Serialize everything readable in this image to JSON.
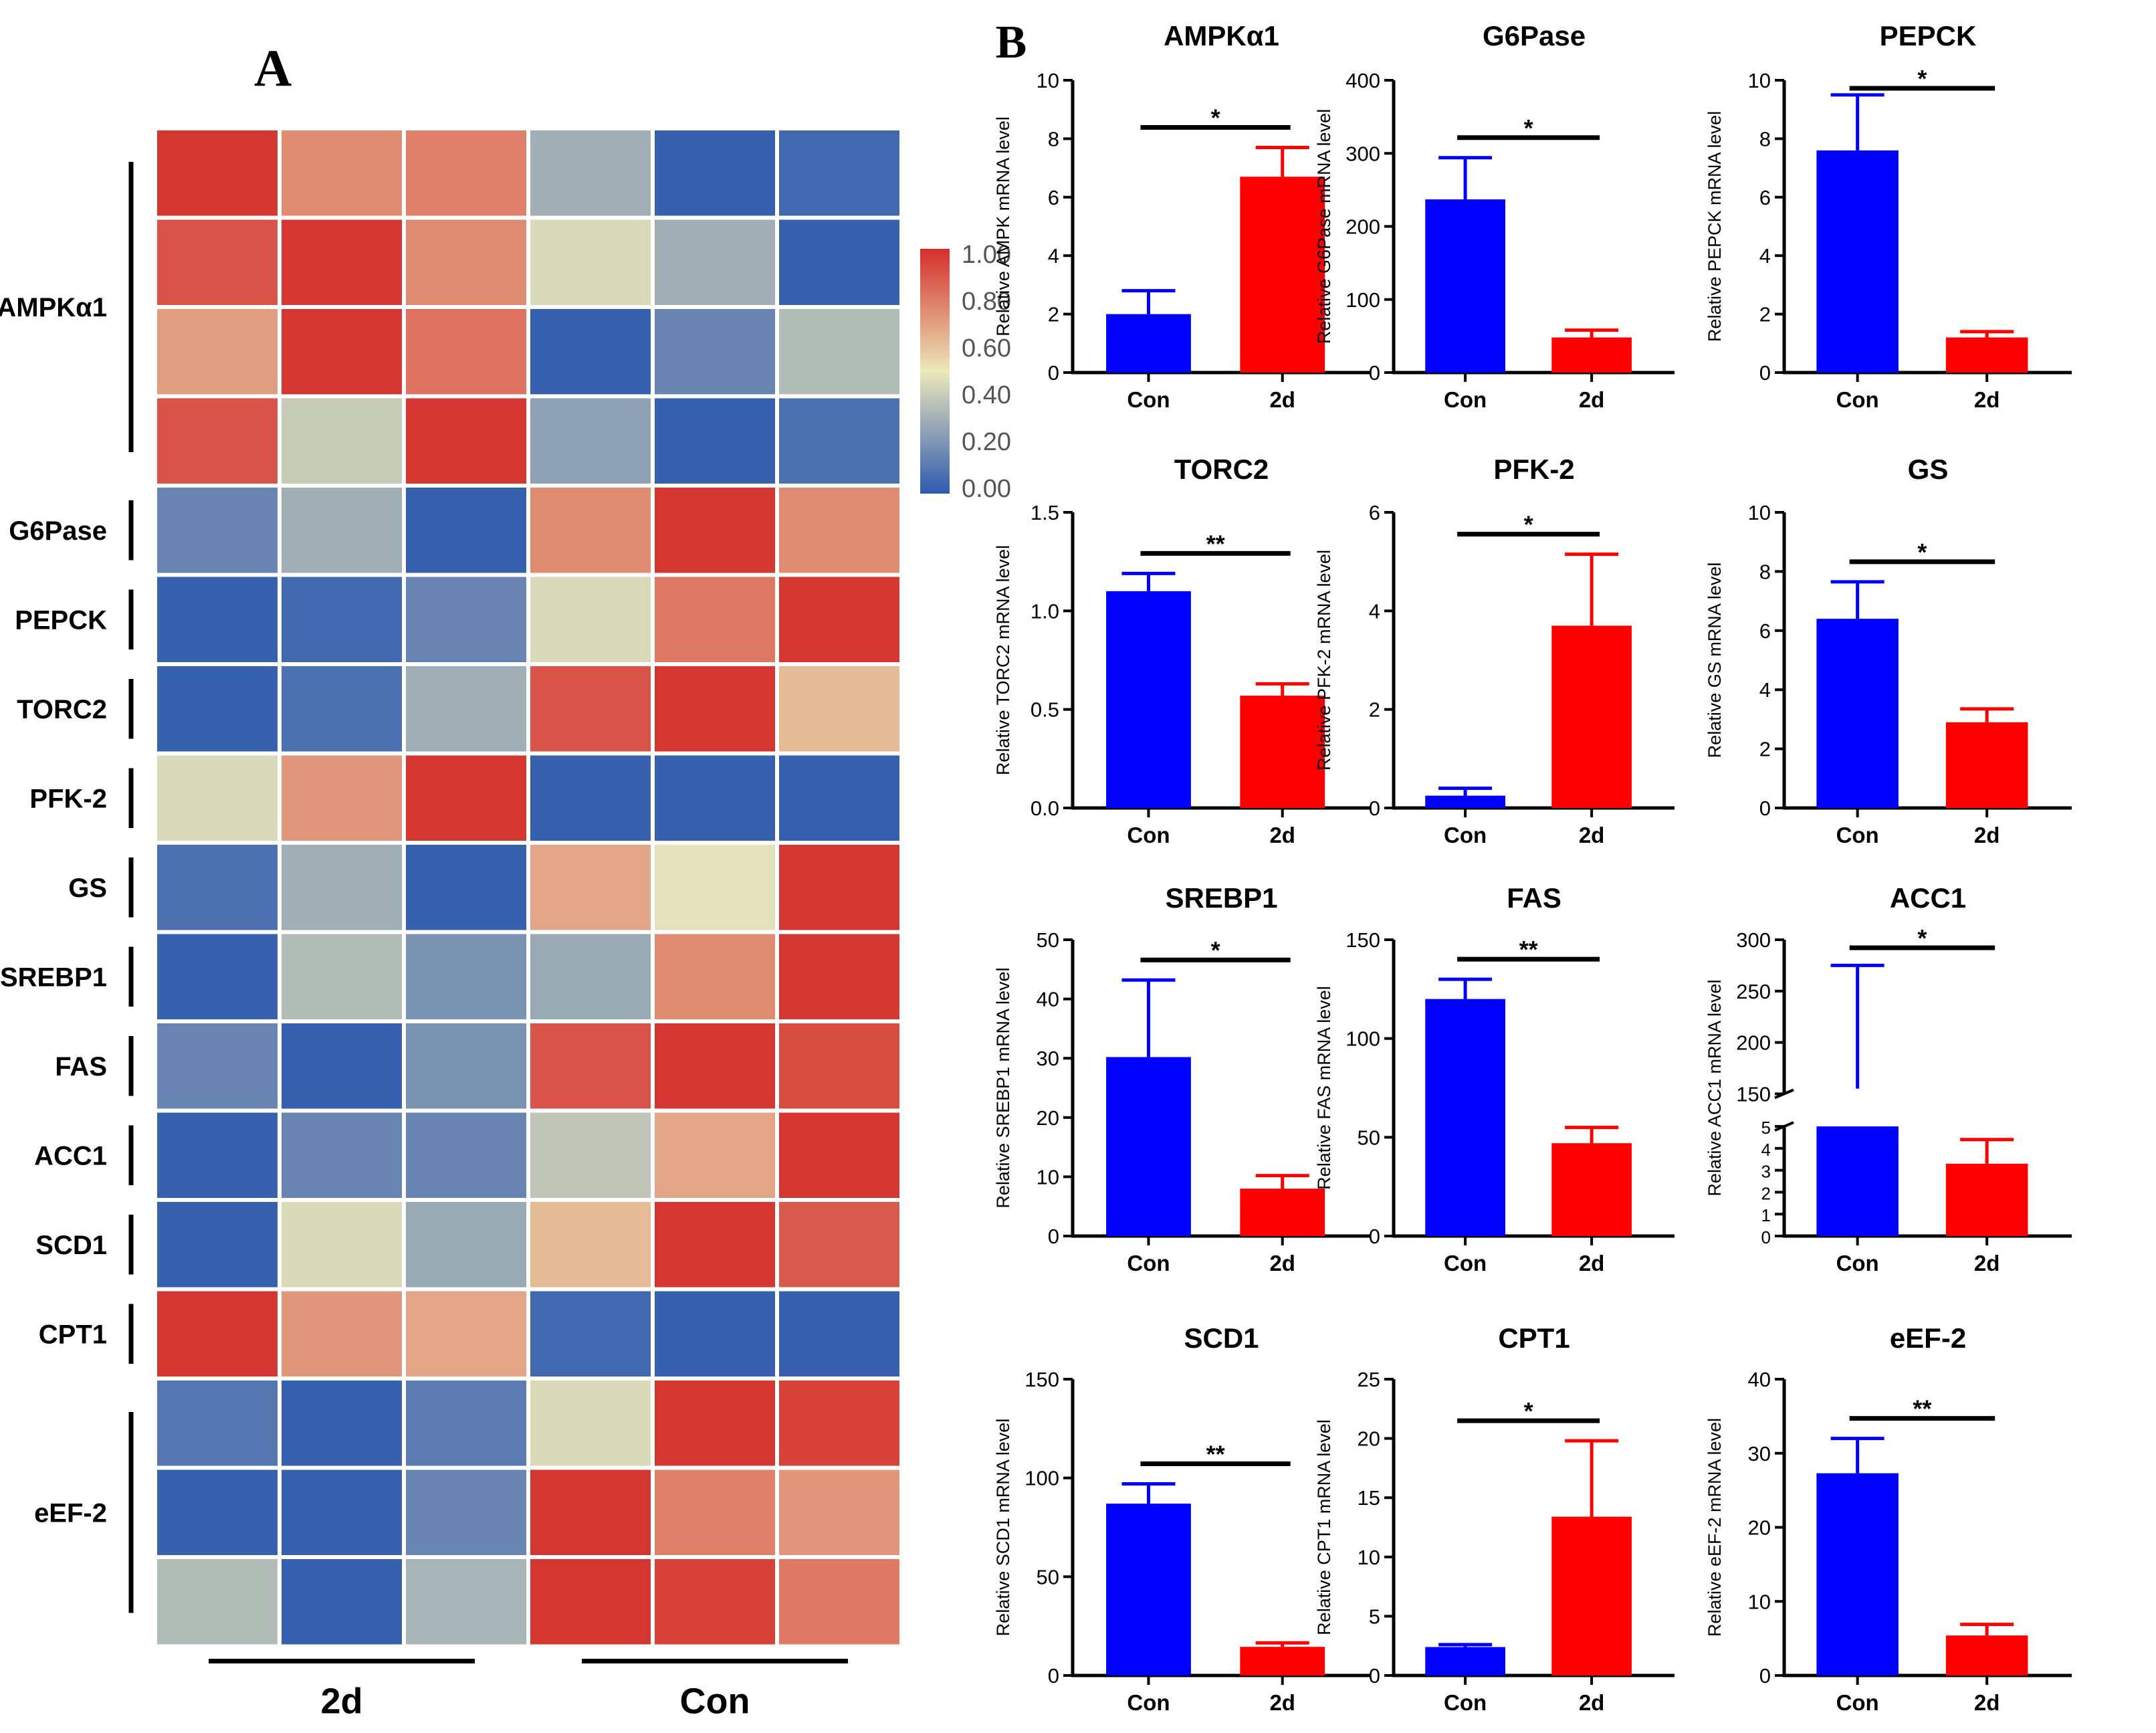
{
  "panels": {
    "a_label": "A",
    "b_label": "B"
  },
  "colors": {
    "con": "#0000ff",
    "treated": "#ff0000",
    "heat_low": "#2f5aae",
    "heat_mid": "#ece8bb",
    "heat_high": "#d32f2b"
  },
  "chart_data": [
    {
      "type": "heatmap",
      "title": "",
      "row_labels": [
        "AMPKα1",
        "G6Pase",
        "PEPCK",
        "TORC2",
        "PFK-2",
        "GS",
        "SREBP1",
        "FAS",
        "ACC1",
        "SCD1",
        "CPT1",
        "eEF-2"
      ],
      "row_counts": [
        4,
        1,
        1,
        1,
        1,
        1,
        1,
        1,
        1,
        1,
        1,
        3
      ],
      "column_groups": [
        "2d",
        "Con"
      ],
      "columns_per_group": 3,
      "values": [
        [
          0.98,
          0.75,
          0.78,
          0.3,
          0.02,
          0.05
        ],
        [
          0.9,
          0.98,
          0.75,
          0.45,
          0.3,
          0.02
        ],
        [
          0.7,
          0.98,
          0.82,
          0.02,
          0.15,
          0.35
        ],
        [
          0.9,
          0.4,
          0.98,
          0.25,
          0.02,
          0.08
        ],
        [
          0.15,
          0.3,
          0.02,
          0.75,
          0.98,
          0.75
        ],
        [
          0.02,
          0.05,
          0.15,
          0.45,
          0.8,
          0.98
        ],
        [
          0.02,
          0.08,
          0.3,
          0.9,
          0.98,
          0.62
        ],
        [
          0.45,
          0.72,
          0.98,
          0.02,
          0.02,
          0.02
        ],
        [
          0.08,
          0.3,
          0.02,
          0.68,
          0.48,
          0.98
        ],
        [
          0.02,
          0.35,
          0.2,
          0.28,
          0.75,
          0.98
        ],
        [
          0.15,
          0.02,
          0.2,
          0.9,
          0.98,
          0.92
        ],
        [
          0.02,
          0.15,
          0.15,
          0.38,
          0.68,
          0.98
        ],
        [
          0.02,
          0.45,
          0.28,
          0.62,
          0.98,
          0.88
        ],
        [
          0.98,
          0.72,
          0.68,
          0.05,
          0.02,
          0.02
        ],
        [
          0.1,
          0.02,
          0.12,
          0.45,
          0.98,
          0.95
        ],
        [
          0.02,
          0.02,
          0.15,
          0.98,
          0.78,
          0.72
        ],
        [
          0.35,
          0.02,
          0.32,
          0.98,
          0.95,
          0.8
        ]
      ],
      "colorbar": {
        "min": 0,
        "max": 1,
        "ticks": [
          "1.00",
          "0.80",
          "0.60",
          "0.40",
          "0.20",
          "0.00"
        ]
      }
    },
    {
      "type": "bar",
      "title": "AMPKα1",
      "ylabel": "Relative AMPK mRNA level",
      "categories": [
        "Con",
        "2d"
      ],
      "values": [
        2.0,
        6.7
      ],
      "errors": [
        0.8,
        1.0
      ],
      "ylim": [
        0,
        10
      ],
      "yticks": [
        0,
        2,
        4,
        6,
        8,
        10
      ],
      "significance": "*"
    },
    {
      "type": "bar",
      "title": "G6Pase",
      "ylabel": "Relative G6Pase mRNA level",
      "categories": [
        "Con",
        "2d"
      ],
      "values": [
        237,
        48
      ],
      "errors": [
        57,
        10
      ],
      "ylim": [
        0,
        400
      ],
      "yticks": [
        0,
        100,
        200,
        300,
        400
      ],
      "significance": "*"
    },
    {
      "type": "bar",
      "title": "PEPCK",
      "ylabel": "Relative PEPCK mRNA level",
      "categories": [
        "Con",
        "2d"
      ],
      "values": [
        7.6,
        1.2
      ],
      "errors": [
        1.9,
        0.2
      ],
      "ylim": [
        0,
        10
      ],
      "yticks": [
        0,
        2,
        4,
        6,
        8,
        10
      ],
      "significance": "*"
    },
    {
      "type": "bar",
      "title": "TORC2",
      "ylabel": "Relative TORC2 mRNA level",
      "categories": [
        "Con",
        "2d"
      ],
      "values": [
        1.1,
        0.57
      ],
      "errors": [
        0.09,
        0.06
      ],
      "ylim": [
        0,
        1.5
      ],
      "yticks": [
        0,
        0.5,
        1.0,
        1.5
      ],
      "ytick_labels": [
        "0.0",
        "0.5",
        "1.0",
        "1.5"
      ],
      "significance": "**"
    },
    {
      "type": "bar",
      "title": "PFK-2",
      "ylabel": "Relative PFK-2 mRNA level",
      "categories": [
        "Con",
        "2d"
      ],
      "values": [
        0.25,
        3.7
      ],
      "errors": [
        0.15,
        1.45
      ],
      "ylim": [
        0,
        6
      ],
      "yticks": [
        0,
        2,
        4,
        6
      ],
      "significance": "*"
    },
    {
      "type": "bar",
      "title": "GS",
      "ylabel": "Relative GS mRNA level",
      "categories": [
        "Con",
        "2d"
      ],
      "values": [
        6.4,
        2.9
      ],
      "errors": [
        1.25,
        0.45
      ],
      "ylim": [
        0,
        10
      ],
      "yticks": [
        0,
        2,
        4,
        6,
        8,
        10
      ],
      "significance": "*"
    },
    {
      "type": "bar",
      "title": "SREBP1",
      "ylabel": "Relative SREBP1 mRNA level",
      "categories": [
        "Con",
        "2d"
      ],
      "values": [
        30.2,
        8.0
      ],
      "errors": [
        13,
        2.2
      ],
      "ylim": [
        0,
        50
      ],
      "yticks": [
        0,
        10,
        20,
        30,
        40,
        50
      ],
      "significance": "*"
    },
    {
      "type": "bar",
      "title": "FAS",
      "ylabel": "Relative FAS mRNA level",
      "categories": [
        "Con",
        "2d"
      ],
      "values": [
        120,
        47
      ],
      "errors": [
        10,
        8
      ],
      "ylim": [
        0,
        150
      ],
      "yticks": [
        0,
        50,
        100,
        150
      ],
      "significance": "**"
    },
    {
      "type": "bar",
      "title": "ACC1",
      "ylabel": "Relative ACC1 mRNA level",
      "categories": [
        "Con",
        "2d"
      ],
      "values": [
        155,
        3.3
      ],
      "errors": [
        120,
        1.1
      ],
      "ylim": [
        0,
        300
      ],
      "axis_break": [
        5,
        150
      ],
      "yticks": [
        0,
        1,
        2,
        3,
        4,
        5,
        150,
        200,
        250,
        300
      ],
      "significance": "*"
    },
    {
      "type": "bar",
      "title": "SCD1",
      "ylabel": "Relative SCD1 mRNA level",
      "categories": [
        "Con",
        "2d"
      ],
      "values": [
        87,
        14.5
      ],
      "errors": [
        10,
        2
      ],
      "ylim": [
        0,
        150
      ],
      "yticks": [
        0,
        50,
        100,
        150
      ],
      "significance": "**"
    },
    {
      "type": "bar",
      "title": "CPT1",
      "ylabel": "Relative CPT1 mRNA level",
      "categories": [
        "Con",
        "2d"
      ],
      "values": [
        2.4,
        13.4
      ],
      "errors": [
        0.2,
        6.4
      ],
      "ylim": [
        0,
        25
      ],
      "yticks": [
        0,
        5,
        10,
        15,
        20,
        25
      ],
      "significance": "*"
    },
    {
      "type": "bar",
      "title": "eEF-2",
      "ylabel": "Relative eEF-2 mRNA level",
      "categories": [
        "Con",
        "2d"
      ],
      "values": [
        27.3,
        5.4
      ],
      "errors": [
        4.7,
        1.5
      ],
      "ylim": [
        0,
        40
      ],
      "yticks": [
        0,
        10,
        20,
        30,
        40
      ],
      "significance": "**"
    }
  ]
}
